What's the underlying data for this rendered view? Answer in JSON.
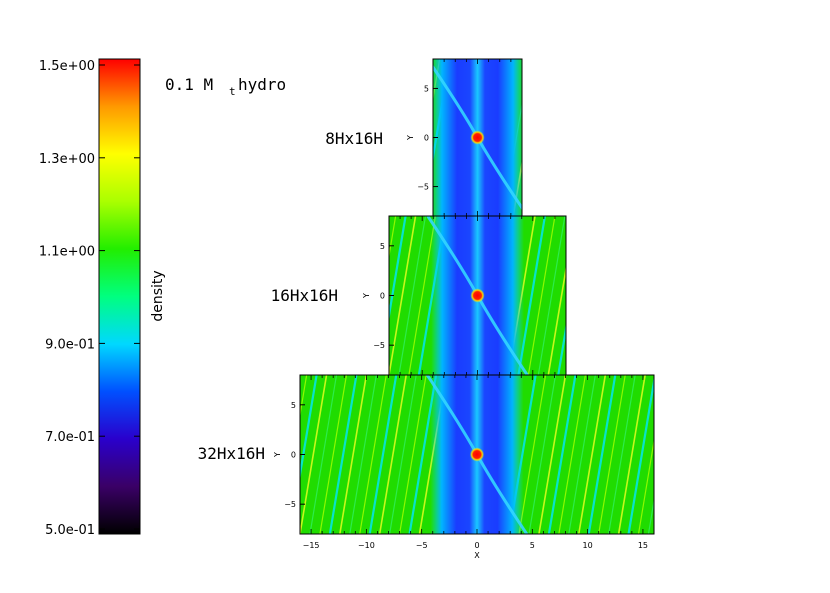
{
  "chart_data": {
    "type": "heatmap",
    "title_main": "0.1 M",
    "title_sub": "t",
    "title_suffix": "hydro",
    "colorbar": {
      "label": "density",
      "ticks": [
        "1.5e+00",
        "1.3e+00",
        "1.1e+00",
        "9.0e-01",
        "7.0e-01",
        "5.0e-01"
      ],
      "range": [
        0.5,
        1.5
      ],
      "colors": [
        "#000000",
        "#3a0066",
        "#2a00cc",
        "#0050ff",
        "#00d8ff",
        "#00ff80",
        "#22ee00",
        "#aaff00",
        "#ffff00",
        "#ff9900",
        "#ff0000"
      ]
    },
    "panels": [
      {
        "label": "8Hx16H",
        "x_range": [
          -4,
          4
        ],
        "y_range": [
          -8,
          8
        ],
        "yticks": [
          "5",
          "0",
          "−5"
        ],
        "ylabel": "Y"
      },
      {
        "label": "16Hx16H",
        "x_range": [
          -8,
          8
        ],
        "y_range": [
          -8,
          8
        ],
        "yticks": [
          "5",
          "0",
          "−5"
        ],
        "ylabel": "Y"
      },
      {
        "label": "32Hx16H",
        "x_range": [
          -16,
          16
        ],
        "y_range": [
          -8,
          8
        ],
        "yticks": [
          "5",
          "0",
          "−5"
        ],
        "ylabel": "Y",
        "xticks": [
          "−15",
          "−10",
          "−5",
          "0",
          "5",
          "10",
          "15"
        ],
        "xlabel": "X"
      }
    ]
  }
}
